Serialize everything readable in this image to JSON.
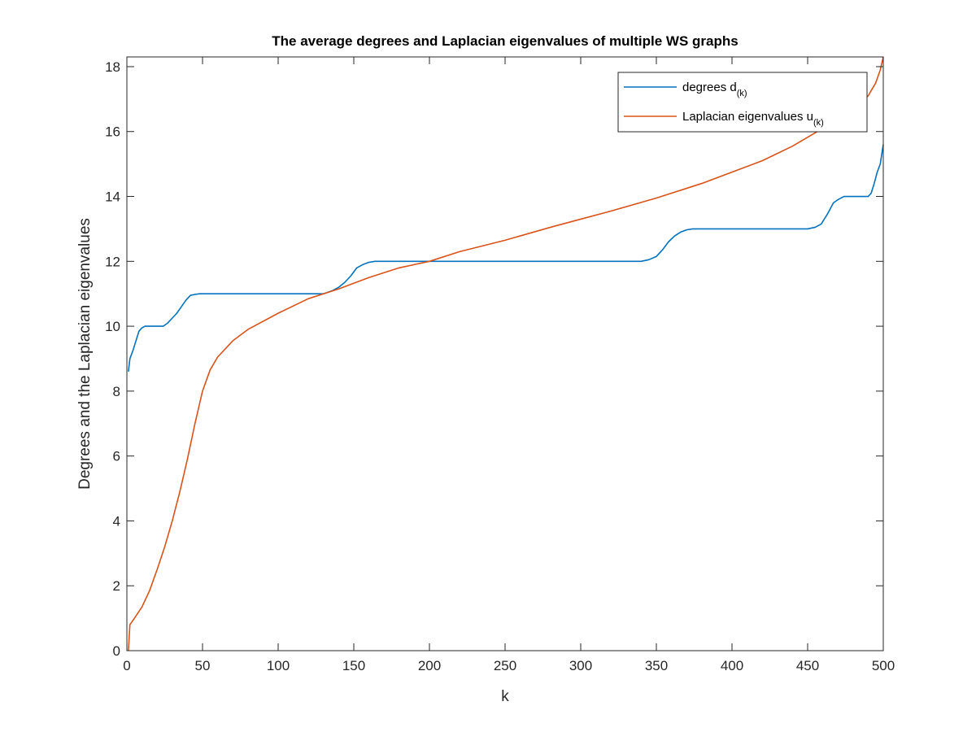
{
  "chart_data": {
    "type": "line",
    "title": "The average degrees and Laplacian eigenvalues of multiple WS graphs",
    "xlabel": "k",
    "ylabel": "Degrees and the Laplacian eigenvalues",
    "xlim": [
      0,
      500
    ],
    "ylim": [
      0,
      18.3
    ],
    "xticks": [
      0,
      50,
      100,
      150,
      200,
      250,
      300,
      350,
      400,
      450,
      500
    ],
    "yticks": [
      0,
      2,
      4,
      6,
      8,
      10,
      12,
      14,
      16,
      18
    ],
    "grid": false,
    "legend_position": "top-right",
    "series": [
      {
        "name": "degrees d",
        "name_subscript": "(k)",
        "color": "#0072BD",
        "points": [
          [
            1,
            8.6
          ],
          [
            2,
            9.0
          ],
          [
            4,
            9.25
          ],
          [
            6,
            9.55
          ],
          [
            8,
            9.85
          ],
          [
            10,
            9.95
          ],
          [
            12,
            10.0
          ],
          [
            24,
            10.0
          ],
          [
            27,
            10.1
          ],
          [
            30,
            10.25
          ],
          [
            33,
            10.4
          ],
          [
            36,
            10.6
          ],
          [
            39,
            10.8
          ],
          [
            42,
            10.95
          ],
          [
            45,
            10.98
          ],
          [
            48,
            11.0
          ],
          [
            130,
            11.0
          ],
          [
            136,
            11.1
          ],
          [
            140,
            11.2
          ],
          [
            144,
            11.35
          ],
          [
            148,
            11.55
          ],
          [
            152,
            11.8
          ],
          [
            156,
            11.9
          ],
          [
            160,
            11.97
          ],
          [
            164,
            12.0
          ],
          [
            340,
            12.0
          ],
          [
            345,
            12.05
          ],
          [
            350,
            12.15
          ],
          [
            354,
            12.35
          ],
          [
            358,
            12.6
          ],
          [
            362,
            12.78
          ],
          [
            366,
            12.9
          ],
          [
            370,
            12.97
          ],
          [
            374,
            13.0
          ],
          [
            450,
            13.0
          ],
          [
            455,
            13.05
          ],
          [
            459,
            13.15
          ],
          [
            463,
            13.45
          ],
          [
            467,
            13.8
          ],
          [
            470,
            13.9
          ],
          [
            474,
            14.0
          ],
          [
            490,
            14.0
          ],
          [
            492,
            14.1
          ],
          [
            494,
            14.4
          ],
          [
            496,
            14.75
          ],
          [
            498,
            15.0
          ],
          [
            499,
            15.3
          ],
          [
            500,
            15.6
          ]
        ]
      },
      {
        "name": "Laplacian eigenvalues u",
        "name_subscript": "(k)",
        "color": "#D95319",
        "points": [
          [
            1,
            0.0
          ],
          [
            2,
            0.8
          ],
          [
            5,
            1.0
          ],
          [
            10,
            1.35
          ],
          [
            15,
            1.85
          ],
          [
            20,
            2.5
          ],
          [
            25,
            3.2
          ],
          [
            30,
            4.0
          ],
          [
            35,
            4.9
          ],
          [
            40,
            5.9
          ],
          [
            45,
            7.0
          ],
          [
            50,
            8.0
          ],
          [
            55,
            8.65
          ],
          [
            60,
            9.05
          ],
          [
            70,
            9.55
          ],
          [
            80,
            9.9
          ],
          [
            100,
            10.4
          ],
          [
            120,
            10.85
          ],
          [
            140,
            11.15
          ],
          [
            160,
            11.5
          ],
          [
            180,
            11.8
          ],
          [
            200,
            12.0
          ],
          [
            220,
            12.3
          ],
          [
            250,
            12.65
          ],
          [
            280,
            13.05
          ],
          [
            300,
            13.3
          ],
          [
            320,
            13.55
          ],
          [
            350,
            13.95
          ],
          [
            380,
            14.4
          ],
          [
            400,
            14.75
          ],
          [
            420,
            15.1
          ],
          [
            440,
            15.55
          ],
          [
            460,
            16.1
          ],
          [
            480,
            16.7
          ],
          [
            490,
            17.1
          ],
          [
            495,
            17.5
          ],
          [
            498,
            17.9
          ],
          [
            500,
            18.3
          ]
        ]
      }
    ]
  }
}
